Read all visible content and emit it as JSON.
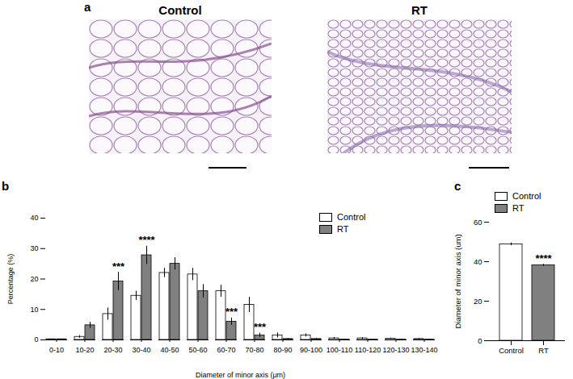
{
  "panel_a": {
    "label": "a",
    "images": [
      {
        "title": "Control"
      },
      {
        "title": "RT"
      }
    ]
  },
  "chart_data": [
    {
      "panel": "b",
      "type": "bar",
      "categories": [
        "0-10",
        "10-20",
        "20-30",
        "30-40",
        "40-50",
        "50-60",
        "60-70",
        "70-80",
        "80-90",
        "90-100",
        "100-110",
        "110-120",
        "120-130",
        "130-140"
      ],
      "series": [
        {
          "name": "Control",
          "color": "#ffffff",
          "values": [
            0.2,
            1,
            8.5,
            14.5,
            22,
            21.5,
            16,
            11.5,
            1.5,
            1.5,
            0.5,
            0.5,
            0.4,
            0.3
          ],
          "errors": [
            0.1,
            0.4,
            2,
            1.5,
            1.5,
            2,
            2,
            2.5,
            0.8,
            0.5,
            0.3,
            0.3,
            0.2,
            0.2
          ]
        },
        {
          "name": "RT",
          "color": "#808080",
          "values": [
            0.2,
            4.8,
            19.2,
            27.8,
            25,
            16,
            6,
            1.5,
            0.3,
            0.3,
            0.1,
            0.1,
            0.1,
            0.1
          ],
          "errors": [
            0.1,
            1,
            3,
            3,
            2,
            2.2,
            1.2,
            0.7,
            0.2,
            0.2,
            0.1,
            0.1,
            0.1,
            0.1
          ]
        }
      ],
      "x_label": "Diameter of minor axis (μm)",
      "y_label": "Percentage (%)",
      "ylim": [
        0,
        40
      ],
      "yticks": [
        0,
        10,
        20,
        30,
        40
      ],
      "legend": "top-right",
      "annotations": [
        {
          "category": "20-30",
          "series": "RT",
          "text": "***"
        },
        {
          "category": "30-40",
          "series": "RT",
          "text": "****"
        },
        {
          "category": "60-70",
          "series": "RT",
          "text": "***"
        },
        {
          "category": "70-80",
          "series": "RT",
          "text": "***"
        }
      ]
    },
    {
      "panel": "c",
      "type": "bar",
      "categories": [
        "Control",
        "RT"
      ],
      "values": [
        48.8,
        38.2
      ],
      "errors": [
        0.7,
        0.5
      ],
      "colors": [
        "#ffffff",
        "#808080"
      ],
      "y_label": "Diameter of minor axis (um)",
      "ylim": [
        0,
        60
      ],
      "yticks": [
        0,
        20,
        40,
        60
      ],
      "legend": "top",
      "annotations": [
        {
          "category": "RT",
          "text": "****"
        }
      ]
    }
  ]
}
